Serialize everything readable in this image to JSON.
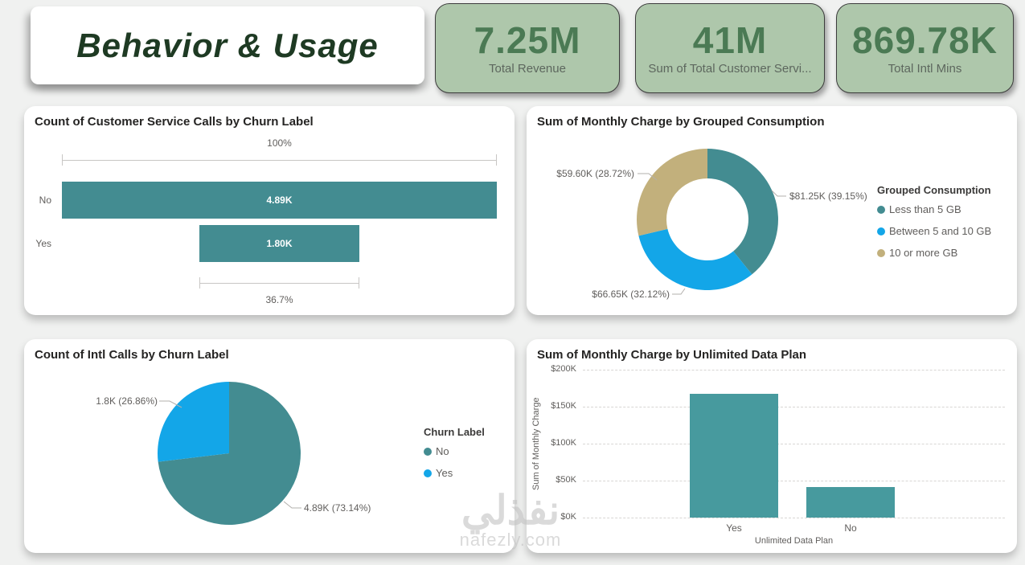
{
  "page": {
    "title": "Behavior & Usage",
    "watermark": {
      "line1": "نفذلي",
      "line2": "nafezly.com"
    }
  },
  "colors": {
    "teal": "#438c91",
    "teal_bar": "#479a9e",
    "blue": "#13a6e8",
    "tan": "#c2b07c",
    "kpi_bg": "#aec7ab",
    "kpi_value": "#4b7a54",
    "kpi_label": "#5d675e",
    "header_text": "#1e3a23",
    "title_text": "#252423",
    "muted_text": "#605e5c",
    "page_bg": "#f0f1f0",
    "card_bg": "#ffffff",
    "grid_line": "#d8d6d4",
    "leader_line": "#b3b0ad",
    "watermark": "#c4c4c4"
  },
  "kpis": [
    {
      "value": "7.25M",
      "label": "Total Revenue"
    },
    {
      "value": "41M",
      "label": "Sum of Total Customer Servi..."
    },
    {
      "value": "869.78K",
      "label": "Total Intl Mins"
    }
  ],
  "chart_data": [
    {
      "type": "funnel",
      "title": "Count of Customer Service Calls by Churn Label",
      "categories": [
        "No",
        "Yes"
      ],
      "values": [
        4890,
        1800
      ],
      "value_labels": [
        "4.89K",
        "1.80K"
      ],
      "top_percent_label": "100%",
      "bottom_percent_label": "36.7%"
    },
    {
      "type": "donut",
      "title": "Sum of Monthly Charge by Grouped Consumption",
      "legend_title": "Grouped Consumption",
      "legend_position": "right",
      "slices": [
        {
          "label": "Less than 5 GB",
          "value": 81250,
          "percent": 39.15,
          "callout": "$81.25K (39.15%)",
          "color_key": "teal"
        },
        {
          "label": "Between 5 and 10 GB",
          "value": 66650,
          "percent": 32.12,
          "callout": "$66.65K (32.12%)",
          "color_key": "blue"
        },
        {
          "label": "10 or more GB",
          "value": 59600,
          "percent": 28.72,
          "callout": "$59.60K (28.72%)",
          "color_key": "tan"
        }
      ]
    },
    {
      "type": "pie",
      "title": "Count of Intl Calls by Churn Label",
      "legend_title": "Churn Label",
      "legend_position": "right",
      "slices": [
        {
          "label": "No",
          "value": 4890,
          "percent": 73.14,
          "callout": "4.89K (73.14%)",
          "color_key": "teal"
        },
        {
          "label": "Yes",
          "value": 1800,
          "percent": 26.86,
          "callout": "1.8K (26.86%)",
          "color_key": "blue"
        }
      ]
    },
    {
      "type": "bar",
      "title": "Sum of Monthly Charge by Unlimited Data Plan",
      "categories": [
        "Yes",
        "No"
      ],
      "values": [
        167000,
        41000
      ],
      "xlabel": "Unlimited Data Plan",
      "ylabel": "Sum of Monthly Charge",
      "ylim": [
        0,
        200000
      ],
      "yticks": [
        "$200K",
        "$150K",
        "$100K",
        "$50K",
        "$0K"
      ],
      "grid": "dashed-horizontal"
    }
  ]
}
